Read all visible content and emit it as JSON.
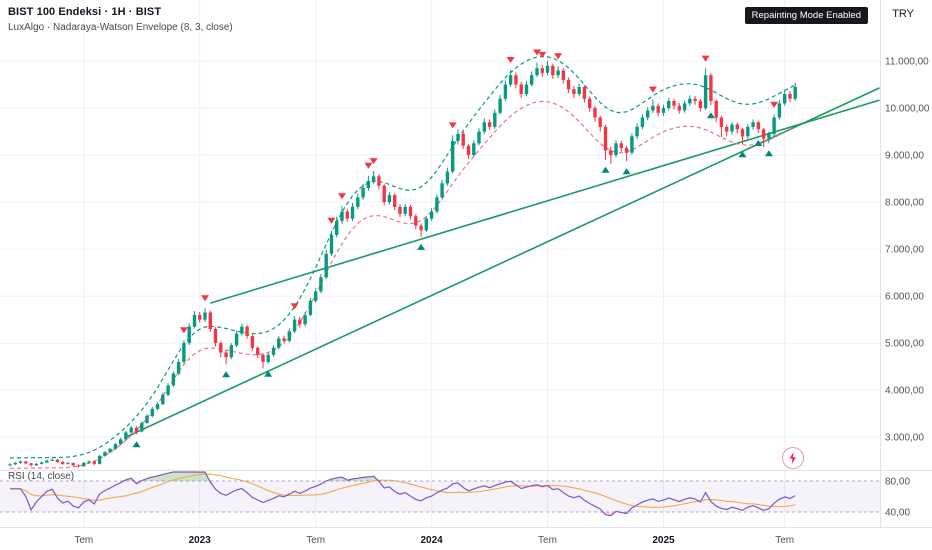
{
  "header": {
    "symbol_title": "BIST 100 Endeksi · 1H · BIST",
    "indicator_title": "LuxAlgo · Nadaraya-Watson Envelope (8, 3, close)",
    "badge": "Repainting Mode Enabled",
    "currency": "TRY"
  },
  "rsi_pane": {
    "label": "RSI (14, close)"
  },
  "colors": {
    "up": "#089981",
    "down": "#f23645",
    "buy": "#00897b",
    "sell": "#f23645",
    "grid": "#eef0f6",
    "separator": "#e0e3eb",
    "trend": "#1a9a5f",
    "env_upper": "#0a9a81",
    "env_lower": "#f2708a",
    "rsi_line": "#7e57c2",
    "rsi_ma": "#f2a33c",
    "rsi_band_line": "#aba4d9",
    "rsi_band_fill": "rgba(126,87,194,0.08)",
    "rsi_over_fill": "rgba(67,160,71,0.28)",
    "rsi_under_fill": "rgba(242,54,69,0.18)",
    "axis_text": "#50535e",
    "axis_text_major": "#131722"
  },
  "chart_data": {
    "type": "candlestick",
    "title": "BIST 100 Endeksi",
    "interval": "1H",
    "exchange": "BIST",
    "currency": "TRY",
    "y_axis": {
      "ticks": [
        {
          "value": 11000,
          "label": "11.000,00"
        },
        {
          "value": 10000,
          "label": "10.000,00"
        },
        {
          "value": 9000,
          "label": "9.000,00"
        },
        {
          "value": 8000,
          "label": "8.000,00"
        },
        {
          "value": 7000,
          "label": "7.000,00"
        },
        {
          "value": 6000,
          "label": "6.000,00"
        },
        {
          "value": 5000,
          "label": "5.000,00"
        },
        {
          "value": 4000,
          "label": "4.000,00"
        },
        {
          "value": 3000,
          "label": "3.000,00"
        }
      ]
    },
    "x_axis": {
      "labels": [
        {
          "text": "Tem",
          "i": 14,
          "major": false
        },
        {
          "text": "2023",
          "i": 36,
          "major": true
        },
        {
          "text": "Tem",
          "i": 58,
          "major": false
        },
        {
          "text": "2024",
          "i": 80,
          "major": true
        },
        {
          "text": "Tem",
          "i": 102,
          "major": false
        },
        {
          "text": "2025",
          "i": 124,
          "major": true
        },
        {
          "text": "Tem",
          "i": 147,
          "major": false
        }
      ]
    },
    "candles": [
      [
        2400,
        2445,
        2380,
        2420
      ],
      [
        2420,
        2470,
        2405,
        2450
      ],
      [
        2450,
        2500,
        2435,
        2480
      ],
      [
        2480,
        2495,
        2420,
        2440
      ],
      [
        2440,
        2455,
        2375,
        2400
      ],
      [
        2400,
        2450,
        2385,
        2430
      ],
      [
        2430,
        2480,
        2415,
        2460
      ],
      [
        2460,
        2520,
        2445,
        2500
      ],
      [
        2500,
        2545,
        2490,
        2520
      ],
      [
        2520,
        2535,
        2450,
        2470
      ],
      [
        2470,
        2485,
        2410,
        2430
      ],
      [
        2430,
        2475,
        2415,
        2450
      ],
      [
        2450,
        2460,
        2380,
        2400
      ],
      [
        2400,
        2420,
        2350,
        2380
      ],
      [
        2380,
        2470,
        2365,
        2450
      ],
      [
        2450,
        2505,
        2435,
        2480
      ],
      [
        2480,
        2490,
        2405,
        2430
      ],
      [
        2430,
        2620,
        2420,
        2600
      ],
      [
        2600,
        2705,
        2580,
        2680
      ],
      [
        2680,
        2775,
        2660,
        2750
      ],
      [
        2750,
        2880,
        2730,
        2850
      ],
      [
        2850,
        2985,
        2830,
        2950
      ],
      [
        2950,
        3130,
        2930,
        3100
      ],
      [
        3100,
        3240,
        3070,
        3200
      ],
      [
        3200,
        3230,
        3060,
        3120
      ],
      [
        3120,
        3335,
        3100,
        3300
      ],
      [
        3300,
        3490,
        3280,
        3450
      ],
      [
        3450,
        3640,
        3420,
        3600
      ],
      [
        3600,
        3745,
        3570,
        3700
      ],
      [
        3700,
        3945,
        3680,
        3900
      ],
      [
        3900,
        4150,
        3870,
        4100
      ],
      [
        4100,
        4400,
        4070,
        4350
      ],
      [
        4350,
        4660,
        4320,
        4600
      ],
      [
        4600,
        5060,
        4570,
        5000
      ],
      [
        5000,
        5420,
        4960,
        5350
      ],
      [
        5350,
        5680,
        5310,
        5600
      ],
      [
        5600,
        5660,
        5440,
        5500
      ],
      [
        5500,
        5740,
        5450,
        5650
      ],
      [
        5650,
        5690,
        5240,
        5300
      ],
      [
        5300,
        5340,
        4930,
        5000
      ],
      [
        5000,
        5040,
        4700,
        4800
      ],
      [
        4800,
        4840,
        4550,
        4700
      ],
      [
        4700,
        5000,
        4660,
        4950
      ],
      [
        4950,
        5260,
        4920,
        5200
      ],
      [
        5200,
        5410,
        5160,
        5350
      ],
      [
        5350,
        5380,
        5090,
        5150
      ],
      [
        5150,
        5180,
        4840,
        4900
      ],
      [
        4900,
        4930,
        4680,
        4750
      ],
      [
        4750,
        4780,
        4460,
        4600
      ],
      [
        4600,
        4800,
        4560,
        4750
      ],
      [
        4750,
        4950,
        4710,
        4900
      ],
      [
        4900,
        5150,
        4870,
        5100
      ],
      [
        5100,
        5160,
        4990,
        5050
      ],
      [
        5050,
        5310,
        5010,
        5250
      ],
      [
        5250,
        5570,
        5210,
        5500
      ],
      [
        5500,
        5560,
        5330,
        5400
      ],
      [
        5400,
        5660,
        5360,
        5600
      ],
      [
        5600,
        5960,
        5570,
        5900
      ],
      [
        5900,
        6170,
        5860,
        6100
      ],
      [
        6100,
        6470,
        6060,
        6400
      ],
      [
        6400,
        6980,
        6360,
        6900
      ],
      [
        6900,
        7390,
        6860,
        7300
      ],
      [
        7300,
        7690,
        7250,
        7600
      ],
      [
        7600,
        7910,
        7540,
        7800
      ],
      [
        7800,
        7860,
        7580,
        7650
      ],
      [
        7650,
        7980,
        7600,
        7900
      ],
      [
        7900,
        8180,
        7850,
        8100
      ],
      [
        8100,
        8390,
        8050,
        8300
      ],
      [
        8300,
        8560,
        8240,
        8450
      ],
      [
        8450,
        8660,
        8390,
        8550
      ],
      [
        8550,
        8600,
        8280,
        8350
      ],
      [
        8350,
        8390,
        7930,
        8000
      ],
      [
        8000,
        8210,
        7950,
        8150
      ],
      [
        8150,
        8180,
        7830,
        7900
      ],
      [
        7900,
        7950,
        7680,
        7750
      ],
      [
        7750,
        7960,
        7700,
        7900
      ],
      [
        7900,
        7940,
        7630,
        7700
      ],
      [
        7700,
        7740,
        7420,
        7500
      ],
      [
        7500,
        7540,
        7260,
        7400
      ],
      [
        7400,
        7700,
        7360,
        7650
      ],
      [
        7650,
        7870,
        7600,
        7800
      ],
      [
        7800,
        8160,
        7760,
        8100
      ],
      [
        8100,
        8470,
        8060,
        8400
      ],
      [
        8400,
        8730,
        8350,
        8650
      ],
      [
        8650,
        9420,
        8610,
        9300
      ],
      [
        9300,
        9550,
        9230,
        9450
      ],
      [
        9450,
        9500,
        9130,
        9200
      ],
      [
        9200,
        9240,
        8920,
        9000
      ],
      [
        9000,
        9310,
        8960,
        9250
      ],
      [
        9250,
        9570,
        9210,
        9500
      ],
      [
        9500,
        9780,
        9450,
        9700
      ],
      [
        9700,
        9760,
        9530,
        9600
      ],
      [
        9600,
        9970,
        9560,
        9900
      ],
      [
        9900,
        10280,
        9860,
        10200
      ],
      [
        10200,
        10590,
        10150,
        10500
      ],
      [
        10500,
        10810,
        10450,
        10700
      ],
      [
        10700,
        10760,
        10420,
        10500
      ],
      [
        10500,
        10560,
        10210,
        10300
      ],
      [
        10300,
        10570,
        10250,
        10500
      ],
      [
        10500,
        10780,
        10460,
        10700
      ],
      [
        10700,
        10970,
        10660,
        10850
      ],
      [
        10850,
        10920,
        10670,
        10750
      ],
      [
        10750,
        11010,
        10700,
        10900
      ],
      [
        10900,
        10950,
        10620,
        10700
      ],
      [
        10700,
        10890,
        10640,
        10800
      ],
      [
        10800,
        10850,
        10520,
        10600
      ],
      [
        10600,
        10650,
        10320,
        10400
      ],
      [
        10400,
        10470,
        10210,
        10300
      ],
      [
        10300,
        10520,
        10250,
        10450
      ],
      [
        10450,
        10490,
        10120,
        10200
      ],
      [
        10200,
        10250,
        9920,
        10000
      ],
      [
        10000,
        10050,
        9710,
        9800
      ],
      [
        9800,
        9840,
        9500,
        9600
      ],
      [
        9600,
        9640,
        8900,
        9100
      ],
      [
        9100,
        9180,
        8820,
        9000
      ],
      [
        9000,
        9320,
        8950,
        9250
      ],
      [
        9250,
        9300,
        9070,
        9150
      ],
      [
        9150,
        9200,
        8870,
        9050
      ],
      [
        9050,
        9460,
        9010,
        9400
      ],
      [
        9400,
        9670,
        9340,
        9600
      ],
      [
        9600,
        9870,
        9550,
        9800
      ],
      [
        9800,
        10020,
        9740,
        9950
      ],
      [
        9950,
        10180,
        9900,
        10050
      ],
      [
        10050,
        10100,
        9820,
        9900
      ],
      [
        9900,
        10070,
        9840,
        10000
      ],
      [
        10000,
        10220,
        9950,
        10150
      ],
      [
        10150,
        10200,
        9970,
        10050
      ],
      [
        10050,
        10110,
        9880,
        9950
      ],
      [
        9950,
        10160,
        9900,
        10100
      ],
      [
        10100,
        10270,
        10050,
        10200
      ],
      [
        10200,
        10260,
        10070,
        10150
      ],
      [
        10150,
        10200,
        9930,
        10000
      ],
      [
        10000,
        10840,
        9960,
        10700
      ],
      [
        10700,
        10750,
        10060,
        10150
      ],
      [
        10150,
        10190,
        9700,
        9800
      ],
      [
        9800,
        9840,
        9380,
        9600
      ],
      [
        9600,
        9650,
        9400,
        9500
      ],
      [
        9500,
        9700,
        9440,
        9650
      ],
      [
        9650,
        9690,
        9460,
        9550
      ],
      [
        9550,
        9580,
        9230,
        9400
      ],
      [
        9400,
        9650,
        9350,
        9600
      ],
      [
        9600,
        9760,
        9540,
        9700
      ],
      [
        9700,
        9730,
        9470,
        9550
      ],
      [
        9550,
        9580,
        9170,
        9350
      ],
      [
        9350,
        9500,
        9250,
        9450
      ],
      [
        9450,
        9860,
        9400,
        9800
      ],
      [
        9800,
        10170,
        9760,
        10100
      ],
      [
        10100,
        10380,
        10050,
        10300
      ],
      [
        10300,
        10360,
        10130,
        10200
      ],
      [
        10200,
        10540,
        10160,
        10450
      ]
    ],
    "signals": {
      "sell": [
        33,
        37,
        54,
        61,
        63,
        68,
        69,
        84,
        95,
        100,
        101,
        104,
        122,
        132,
        145
      ],
      "buy": [
        24,
        41,
        49,
        78,
        113,
        117,
        133,
        139,
        142,
        144
      ]
    },
    "trendlines": [
      {
        "i1": 22,
        "p1": 3000,
        "i2": 165,
        "p2": 10430
      },
      {
        "i1": 38,
        "p1": 5850,
        "i2": 165,
        "p2": 10170
      }
    ],
    "envelope": {
      "bandwidth": 8,
      "mult": 3,
      "source": "close",
      "width_pct": 4.5
    },
    "rsi": {
      "period": 14,
      "upper_band": 80,
      "lower_band": 40,
      "axis_labels": [
        {
          "value": 80,
          "label": "80,00"
        },
        {
          "value": 40,
          "label": "40,00"
        }
      ]
    }
  }
}
